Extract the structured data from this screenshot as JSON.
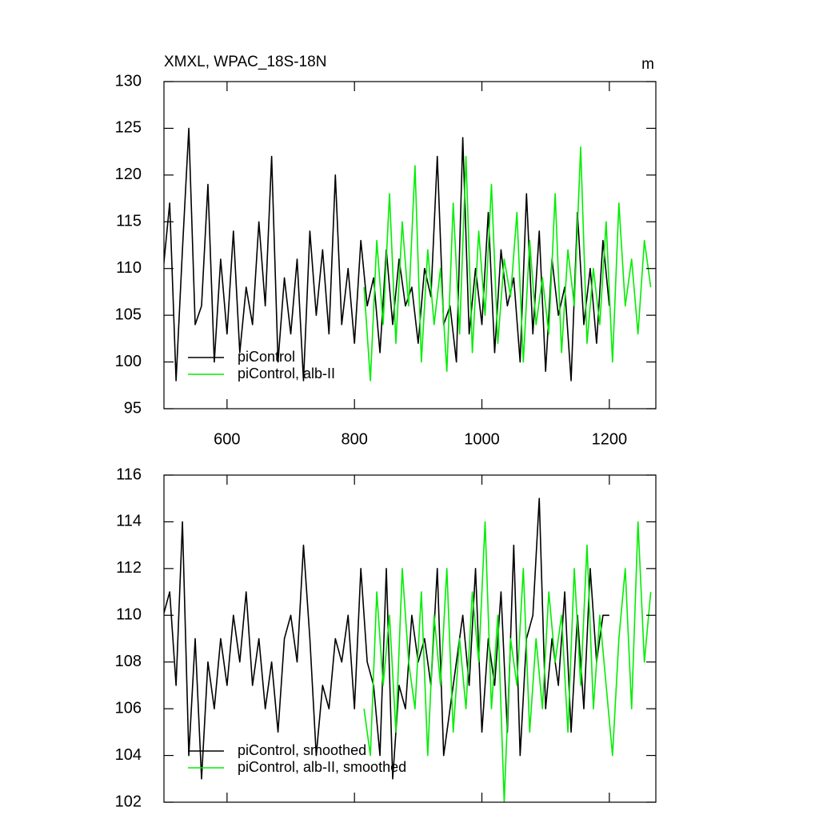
{
  "chart_data": [
    {
      "type": "line",
      "title": "XMXL, WPAC_18S-18N",
      "units": "m",
      "xlim": [
        501,
        1273
      ],
      "ylim": [
        95,
        130
      ],
      "xticks": [
        600,
        800,
        1000,
        1200
      ],
      "yticks": [
        95,
        100,
        105,
        110,
        115,
        120,
        125,
        130
      ],
      "show_xtick_labels": true,
      "legend": "lower left",
      "series": [
        {
          "name": "piControl",
          "color": "#000000",
          "x": [
            500,
            510,
            520,
            530,
            540,
            550,
            560,
            570,
            580,
            590,
            600,
            610,
            620,
            630,
            640,
            650,
            660,
            670,
            680,
            690,
            700,
            710,
            720,
            730,
            740,
            750,
            760,
            770,
            780,
            790,
            800,
            810,
            820,
            830,
            840,
            850,
            860,
            870,
            880,
            890,
            900,
            910,
            920,
            930,
            940,
            950,
            960,
            970,
            980,
            990,
            1000,
            1010,
            1020,
            1030,
            1040,
            1050,
            1060,
            1070,
            1080,
            1090,
            1100,
            1110,
            1120,
            1130,
            1140,
            1150,
            1160,
            1170,
            1180,
            1190,
            1200
          ],
          "values": [
            110,
            117,
            98,
            112,
            125,
            104,
            106,
            119,
            100,
            111,
            103,
            114,
            101,
            108,
            104,
            115,
            106,
            122,
            100,
            109,
            103,
            111,
            98,
            114,
            105,
            112,
            103,
            120,
            104,
            110,
            102,
            113,
            106,
            109,
            101,
            112,
            104,
            111,
            106,
            108,
            102,
            110,
            107,
            122,
            104,
            106,
            100,
            124,
            103,
            110,
            104,
            116,
            101,
            112,
            106,
            109,
            100,
            118,
            103,
            114,
            99,
            111,
            105,
            108,
            98,
            116,
            104,
            110,
            102,
            113,
            106
          ]
        },
        {
          "name": "piControl, alb-II",
          "color": "#00ee00",
          "x": [
            815,
            825,
            835,
            845,
            855,
            865,
            875,
            885,
            895,
            905,
            915,
            925,
            935,
            945,
            955,
            965,
            975,
            985,
            995,
            1005,
            1015,
            1025,
            1035,
            1045,
            1055,
            1065,
            1075,
            1085,
            1095,
            1105,
            1115,
            1125,
            1135,
            1145,
            1155,
            1165,
            1175,
            1185,
            1195,
            1205,
            1215,
            1225,
            1235,
            1245,
            1255,
            1265
          ],
          "values": [
            108,
            98,
            113,
            104,
            118,
            102,
            115,
            106,
            121,
            100,
            112,
            104,
            110,
            99,
            117,
            103,
            122,
            101,
            114,
            105,
            119,
            102,
            111,
            107,
            116,
            100,
            113,
            104,
            109,
            103,
            118,
            101,
            112,
            106,
            123,
            102,
            110,
            104,
            115,
            100,
            117,
            106,
            111,
            103,
            113,
            108
          ]
        }
      ]
    },
    {
      "type": "line",
      "xlim": [
        501,
        1273
      ],
      "ylim": [
        102,
        116
      ],
      "xticks": [
        600,
        800,
        1000,
        1200
      ],
      "yticks": [
        102,
        104,
        106,
        108,
        110,
        112,
        114,
        116
      ],
      "show_xtick_labels": false,
      "legend": "lower left",
      "series": [
        {
          "name": "piControl, smoothed",
          "color": "#000000",
          "x": [
            500,
            510,
            520,
            530,
            540,
            550,
            560,
            570,
            580,
            590,
            600,
            610,
            620,
            630,
            640,
            650,
            660,
            670,
            680,
            690,
            700,
            710,
            720,
            730,
            740,
            750,
            760,
            770,
            780,
            790,
            800,
            810,
            820,
            830,
            840,
            850,
            860,
            870,
            880,
            890,
            900,
            910,
            920,
            930,
            940,
            950,
            960,
            970,
            980,
            990,
            1000,
            1010,
            1020,
            1030,
            1040,
            1050,
            1060,
            1070,
            1080,
            1090,
            1100,
            1110,
            1120,
            1130,
            1140,
            1150,
            1160,
            1170,
            1180,
            1190,
            1200
          ],
          "values": [
            110,
            111,
            107,
            114,
            104,
            109,
            103,
            108,
            106,
            109,
            107,
            110,
            108,
            111,
            107,
            109,
            106,
            108,
            105,
            109,
            110,
            108,
            113,
            109,
            104,
            107,
            106,
            109,
            108,
            110,
            106,
            112,
            108,
            107,
            104,
            112,
            103,
            107,
            106,
            110,
            108,
            109,
            107,
            112,
            104,
            106,
            108,
            110,
            107,
            112,
            105,
            109,
            107,
            111,
            105,
            113,
            104,
            109,
            110,
            115,
            106,
            109,
            107,
            111,
            105,
            110,
            106,
            112,
            108,
            110,
            110
          ]
        },
        {
          "name": "piControl, alb-II, smoothed",
          "color": "#00ee00",
          "x": [
            815,
            825,
            835,
            845,
            855,
            865,
            875,
            885,
            895,
            905,
            915,
            925,
            935,
            945,
            955,
            965,
            975,
            985,
            995,
            1005,
            1015,
            1025,
            1035,
            1045,
            1055,
            1065,
            1075,
            1085,
            1095,
            1105,
            1115,
            1125,
            1135,
            1145,
            1155,
            1165,
            1175,
            1185,
            1195,
            1205,
            1215,
            1225,
            1235,
            1245,
            1255,
            1265
          ],
          "values": [
            106,
            104,
            111,
            107,
            110,
            105,
            112,
            108,
            106,
            111,
            104,
            110,
            107,
            112,
            105,
            109,
            106,
            111,
            108,
            114,
            106,
            110,
            102,
            109,
            107,
            112,
            105,
            109,
            106,
            111,
            108,
            110,
            105,
            112,
            107,
            113,
            106,
            110,
            107,
            104,
            109,
            112,
            106,
            114,
            108,
            111
          ]
        }
      ]
    }
  ]
}
